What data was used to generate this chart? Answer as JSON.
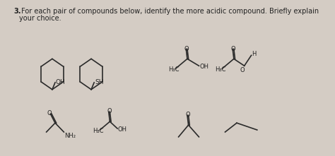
{
  "background_color": "#d4ccc4",
  "title_number": "3.",
  "title_text": " For each pair of compounds below, identify the more acidic compound. Briefly explain",
  "title_text2": "your choice.",
  "font_color": "#222222",
  "font_size_title": 7.0,
  "font_size_labels": 6.5,
  "font_size_small": 6.0
}
